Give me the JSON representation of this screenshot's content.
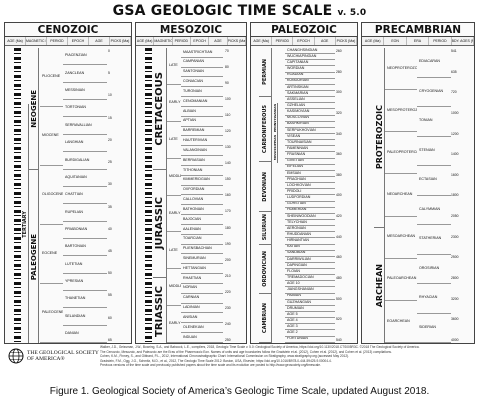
{
  "title": {
    "main": "GSA GEOLOGIC TIME SCALE",
    "version": "v. 5.0"
  },
  "eras": {
    "cenozoic": {
      "name": "CENOZOIC",
      "col_heads": [
        "AGE (Ma)",
        "MAGNETIC POLARITY",
        "PERIOD",
        "EPOCH",
        "AGE",
        "PICKS (Ma)"
      ],
      "periods": [
        "QUATERNARY",
        "NEOGENE",
        "PALEOGENE"
      ],
      "super": "TERTIARY",
      "epochs": [
        "PLIOCENE",
        "MIOCENE",
        "OLIGOCENE",
        "EOCENE",
        "PALEOCENE"
      ],
      "stages": [
        "PIACENZIAN",
        "ZANCLEAN",
        "MESSINIAN",
        "TORTONIAN",
        "SERRAVALLIAN",
        "LANGHIAN",
        "BURDIGALIAN",
        "AQUITANIAN",
        "CHATTIAN",
        "RUPELIAN",
        "PRIABONIAN",
        "BARTONIAN",
        "LUTETIAN",
        "YPRESIAN",
        "THANETIAN",
        "SELANDIAN",
        "DANIAN"
      ],
      "ages": [
        "0",
        "5",
        "10",
        "15",
        "20",
        "25",
        "30",
        "35",
        "40",
        "45",
        "50",
        "55",
        "60",
        "65"
      ]
    },
    "mesozoic": {
      "name": "MESOZOIC",
      "col_heads": [
        "AGE (Ma)",
        "MAGNETIC POLARITY",
        "PERIOD",
        "EPOCH",
        "AGE",
        "PICKS (Ma)"
      ],
      "periods": [
        "CRETACEOUS",
        "JURASSIC",
        "TRIASSIC"
      ],
      "epochs": [
        "LATE",
        "EARLY",
        "LATE",
        "MIDDLE",
        "EARLY",
        "LATE",
        "MIDDLE",
        "EARLY"
      ],
      "stages": [
        "MAASTRICHTIAN",
        "CAMPANIAN",
        "SANTONIAN",
        "CONIACIAN",
        "TURONIAN",
        "CENOMANIAN",
        "ALBIAN",
        "APTIAN",
        "BARREMIAN",
        "HAUTERIVIAN",
        "VALANGINIAN",
        "BERRIASIAN",
        "TITHONIAN",
        "KIMMERIDGIAN",
        "OXFORDIAN",
        "CALLOVIAN",
        "BATHONIAN",
        "BAJOCIAN",
        "AALENIAN",
        "TOARCIAN",
        "PLIENSBACHIAN",
        "SINEMURIAN",
        "HETTANGIAN",
        "RHAETIAN",
        "NORIAN",
        "CARNIAN",
        "LADINIAN",
        "ANISIAN",
        "OLENEKIAN",
        "INDUAN"
      ],
      "ages": [
        "70",
        "80",
        "90",
        "100",
        "110",
        "120",
        "130",
        "140",
        "150",
        "160",
        "170",
        "180",
        "190",
        "200",
        "210",
        "220",
        "230",
        "240",
        "250"
      ]
    },
    "paleozoic": {
      "name": "PALEOZOIC",
      "col_heads": [
        "AGE (Ma)",
        "PERIOD",
        "EPOCH",
        "AGE",
        "PICKS (Ma)"
      ],
      "periods": [
        "PERMIAN",
        "CARBONIFEROUS",
        "DEVONIAN",
        "SILURIAN",
        "ORDOVICIAN",
        "CAMBRIAN"
      ],
      "sub": [
        "PENNSYLVANIAN",
        "MISSISSIPPIAN"
      ],
      "stages": [
        "CHANGHSINGIAN",
        "WUCHIAPINGIAN",
        "CAPITANIAN",
        "WORDIAN",
        "ROADIAN",
        "KUNGURIAN",
        "ARTINSKIAN",
        "SAKMARIAN",
        "ASSELIAN",
        "GZHELIAN",
        "KASIMOVIAN",
        "MOSCOVIAN",
        "BASHKIRIAN",
        "SERPUKHOVIAN",
        "VISEAN",
        "TOURNAISIAN",
        "FAMENNIAN",
        "FRASNIAN",
        "GIVETIAN",
        "EIFELIAN",
        "EMSIAN",
        "PRAGHIAN",
        "LOCHKOVIAN",
        "PRIDOLI",
        "LUDFORDIAN",
        "GORSTIAN",
        "HOMERIAN",
        "SHEINWOODIAN",
        "TELYCHIAN",
        "AERONIAN",
        "RHUDDANIAN",
        "HIRNANTIAN",
        "KATIAN",
        "SANDBIAN",
        "DARRIWILIAN",
        "DAPINGIAN",
        "FLOIAN",
        "TREMADOCIAN",
        "AGE 10",
        "JIANGSHANIAN",
        "PAIBIAN",
        "GUZHANGIAN",
        "DRUMIAN",
        "AGE 5",
        "AGE 4",
        "AGE 3",
        "AGE 2",
        "FORTUNIAN"
      ],
      "ages": [
        "260",
        "280",
        "300",
        "320",
        "340",
        "360",
        "380",
        "400",
        "420",
        "440",
        "460",
        "480",
        "500",
        "520",
        "540"
      ]
    },
    "precambrian": {
      "name": "PRECAMBRIAN",
      "col_heads": [
        "AGE (Ma)",
        "EON",
        "ERA",
        "PERIOD",
        "BDY. AGES (Ma)"
      ],
      "eons": [
        "PROTEROZOIC",
        "ARCHEAN"
      ],
      "eras": [
        "NEOPROTEROZOIC",
        "MESOPROTEROZOIC",
        "PALEOPROTEROZOIC",
        "NEOARCHEAN",
        "MESOARCHEAN",
        "PALEOARCHEAN",
        "EOARCHEAN"
      ],
      "periods": [
        "EDIACARAN",
        "CRYOGENIAN",
        "TONIAN",
        "STENIAN",
        "ECTASIAN",
        "CALYMMIAN",
        "STATHERIAN",
        "OROSIRIAN",
        "RHYACIAN",
        "SIDERIAN"
      ],
      "ages": [
        "541",
        "635",
        "720",
        "1000",
        "1200",
        "1400",
        "1600",
        "1800",
        "2050",
        "2300",
        "2500",
        "2800",
        "3200",
        "3600",
        "4000"
      ]
    }
  },
  "footnotes": [
    "Walker, J.D., Geissman, J.W., Bowring, S.A., and Babcock, L.E., compilers, 2018, Geologic Time Scale v. 5.0: Geological Society of America, https://doi.org/10.1130/2018.CTS005R3C. ©2018 The Geological Society of America.",
    "The Cenozoic, Mesozoic, and Paleozoic are the Eras of the Phanerozoic Eon. Names of units and age boundaries follow the Gradstein et al. (2012), Cohen et al. (2012), and Cohen et al. (2013) compilations.",
    "Cohen, K.M., Finney, S., and Gibbard, P.L., 2012, International Chronostratigraphic Chart: International Commission on Stratigraphy, www.stratigraphy.org (accessed May 2012).",
    "Gradstein, F.M., Ogg, J.G., Schmitz, M.D., et al., 2012, The Geologic Time Scale 2012: Boston, USA, Elsevier, https://doi.org/10.1016/B978-0-444-59425-9.00004-4.",
    "Previous versions of the time scale and previously published papers about the time scale and its evolution are posted to http://www.geosociety.org/timescale."
  ],
  "logo": {
    "line1": "THE GEOLOGICAL SOCIETY",
    "line2": "OF AMERICA®"
  },
  "caption": "Figure 1. Geological Society of America’s Geologic Time Scale, updated August 2018.",
  "colors": {
    "border": "#444444",
    "text": "#111111",
    "background": "#ffffff"
  }
}
